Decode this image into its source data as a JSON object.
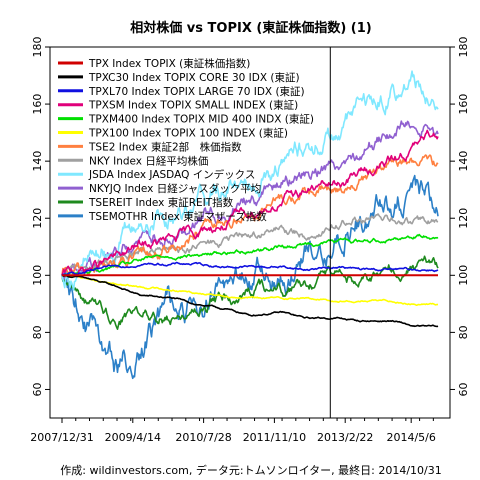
{
  "chart_data": {
    "type": "line",
    "title": "相対株価 vs TOPIX (東証株価指数) (1)",
    "footer": "作成: wildinvestors.com, データ元:トムソンロイター, 最終日: 2014/10/31",
    "x_tick_labels": [
      "2007/12/31",
      "2009/4/14",
      "2010/7/28",
      "2011/11/10",
      "2013/2/22",
      "2014/5/6"
    ],
    "x_range": [
      "2007-12-31",
      "2014-10-31"
    ],
    "x_ticks": [
      "2007-12-31",
      "2009-04-14",
      "2010-07-28",
      "2011-11-10",
      "2013-02-22",
      "2014-05-06"
    ],
    "ylim": [
      50,
      180
    ],
    "y_ticks": [
      60,
      80,
      100,
      120,
      140,
      160,
      180
    ],
    "grid": false,
    "legend_position": "top-left",
    "reference_vline": "2012-11-15",
    "series": [
      {
        "name": "TPX Index TOPIX (東証株価指数)",
        "color": "#d00000",
        "x": [
          "2007-12-31",
          "2014-10-31"
        ],
        "y": [
          100,
          100
        ]
      },
      {
        "name": "TPXC30 Index TOPIX CORE 30 IDX (東証)",
        "color": "#000000",
        "x": [
          "2007-12-31",
          "2008-06-01",
          "2009-01-01",
          "2009-06-01",
          "2010-01-01",
          "2010-06-01",
          "2011-01-01",
          "2011-06-01",
          "2012-01-01",
          "2012-06-01",
          "2013-01-01",
          "2013-06-01",
          "2014-01-01",
          "2014-06-01",
          "2014-10-31"
        ],
        "y": [
          100,
          99,
          96,
          93,
          92,
          90,
          88,
          86,
          87,
          85,
          85,
          84,
          84,
          82,
          82
        ]
      },
      {
        "name": "TPXL70 Index TOPIX LARGE 70 IDX (東証)",
        "color": "#1010e0",
        "x": [
          "2007-12-31",
          "2008-06-01",
          "2009-01-01",
          "2009-06-01",
          "2010-01-01",
          "2010-06-01",
          "2011-01-01",
          "2011-06-01",
          "2012-01-01",
          "2012-06-01",
          "2013-01-01",
          "2013-06-01",
          "2014-01-01",
          "2014-06-01",
          "2014-10-31"
        ],
        "y": [
          100,
          101,
          103,
          104,
          104,
          104,
          103,
          103,
          103,
          102,
          103,
          102,
          102,
          102,
          102
        ]
      },
      {
        "name": "TPXSM Index TOPIX SMALL INDEX (東証)",
        "color": "#e0007a",
        "x": [
          "2007-12-31",
          "2008-06-01",
          "2009-01-01",
          "2009-06-01",
          "2010-01-01",
          "2010-06-01",
          "2011-01-01",
          "2011-06-01",
          "2012-01-01",
          "2012-06-01",
          "2013-01-01",
          "2013-06-01",
          "2014-01-01",
          "2014-06-01",
          "2014-10-31"
        ],
        "y": [
          100,
          102,
          106,
          110,
          112,
          115,
          118,
          122,
          126,
          130,
          132,
          136,
          140,
          145,
          150
        ]
      },
      {
        "name": "TPXM400 Index TOPIX MID 400 INDX (東証)",
        "color": "#00e000",
        "x": [
          "2007-12-31",
          "2008-06-01",
          "2009-01-01",
          "2009-06-01",
          "2010-01-01",
          "2010-06-01",
          "2011-01-01",
          "2011-06-01",
          "2012-01-01",
          "2012-06-01",
          "2013-01-01",
          "2013-06-01",
          "2014-01-01",
          "2014-06-01",
          "2014-10-31"
        ],
        "y": [
          100,
          101,
          103,
          105,
          107,
          107,
          108,
          109,
          110,
          111,
          112,
          112,
          113,
          114,
          114
        ]
      },
      {
        "name": "TPX100 Index TOPIX 100 INDEX (東証)",
        "color": "#ffff00",
        "x": [
          "2007-12-31",
          "2008-06-01",
          "2009-01-01",
          "2009-06-01",
          "2010-01-01",
          "2010-06-01",
          "2011-01-01",
          "2011-06-01",
          "2012-01-01",
          "2012-06-01",
          "2013-01-01",
          "2013-06-01",
          "2014-01-01",
          "2014-06-01",
          "2014-10-31"
        ],
        "y": [
          100,
          99,
          97,
          96,
          95,
          94,
          93,
          92,
          92,
          92,
          91,
          91,
          91,
          90,
          90
        ]
      },
      {
        "name": "TSE2 Index 東証2部　株価指数",
        "color": "#ff8040",
        "x": [
          "2007-12-31",
          "2008-06-01",
          "2009-01-01",
          "2009-06-01",
          "2010-01-01",
          "2010-06-01",
          "2011-01-01",
          "2011-06-01",
          "2012-01-01",
          "2012-06-01",
          "2013-01-01",
          "2013-06-01",
          "2014-01-01",
          "2014-06-01",
          "2014-10-31"
        ],
        "y": [
          100,
          101,
          104,
          106,
          110,
          114,
          118,
          122,
          126,
          128,
          130,
          133,
          138,
          140,
          138
        ]
      },
      {
        "name": "NKY Index 日経平均株価",
        "color": "#a0a0a0",
        "x": [
          "2007-12-31",
          "2008-06-01",
          "2009-01-01",
          "2009-06-01",
          "2010-01-01",
          "2010-06-01",
          "2011-01-01",
          "2011-06-01",
          "2012-01-01",
          "2012-06-01",
          "2013-01-01",
          "2013-06-01",
          "2014-01-01",
          "2014-06-01",
          "2014-10-31"
        ],
        "y": [
          100,
          103,
          106,
          108,
          108,
          110,
          112,
          114,
          116,
          114,
          118,
          120,
          119,
          118,
          119
        ]
      },
      {
        "name": "JSDA Index JASDAQ インデックス",
        "color": "#80e8ff",
        "x": [
          "2007-12-31",
          "2008-06-01",
          "2009-01-01",
          "2009-06-01",
          "2010-01-01",
          "2010-06-01",
          "2011-01-01",
          "2011-06-01",
          "2012-01-01",
          "2012-06-01",
          "2013-01-01",
          "2013-06-01",
          "2014-01-01",
          "2014-06-01",
          "2014-10-31"
        ],
        "y": [
          100,
          105,
          112,
          118,
          122,
          128,
          132,
          136,
          140,
          145,
          150,
          158,
          165,
          168,
          162
        ]
      },
      {
        "name": "NKYJQ Index 日経ジャスダック平均",
        "color": "#9060d0",
        "x": [
          "2007-12-31",
          "2008-06-01",
          "2009-01-01",
          "2009-06-01",
          "2010-01-01",
          "2010-06-01",
          "2011-01-01",
          "2011-06-01",
          "2012-01-01",
          "2012-06-01",
          "2013-01-01",
          "2013-06-01",
          "2014-01-01",
          "2014-06-01",
          "2014-10-31"
        ],
        "y": [
          100,
          103,
          108,
          112,
          116,
          120,
          124,
          128,
          132,
          136,
          140,
          145,
          150,
          155,
          150
        ]
      },
      {
        "name": "TSEREIT Index 東証REIT指数",
        "color": "#1e8a1e",
        "x": [
          "2007-12-31",
          "2008-06-01",
          "2009-01-01",
          "2009-06-01",
          "2010-01-01",
          "2010-06-01",
          "2011-01-01",
          "2011-06-01",
          "2012-01-01",
          "2012-06-01",
          "2013-01-01",
          "2013-06-01",
          "2014-01-01",
          "2014-06-01",
          "2014-10-31"
        ],
        "y": [
          100,
          92,
          84,
          88,
          85,
          88,
          92,
          95,
          94,
          98,
          100,
          98,
          101,
          103,
          104
        ]
      },
      {
        "name": "TSEMOTHR Index 東証マザーズ指数",
        "color": "#2c80c8",
        "x": [
          "2007-12-31",
          "2008-06-01",
          "2009-01-01",
          "2009-06-01",
          "2010-01-01",
          "2010-06-01",
          "2011-01-01",
          "2011-06-01",
          "2012-01-01",
          "2012-06-01",
          "2013-01-01",
          "2013-06-01",
          "2014-01-01",
          "2014-06-01",
          "2014-10-31"
        ],
        "y": [
          100,
          85,
          65,
          75,
          88,
          90,
          95,
          98,
          100,
          105,
          112,
          120,
          125,
          130,
          126
        ]
      }
    ]
  }
}
